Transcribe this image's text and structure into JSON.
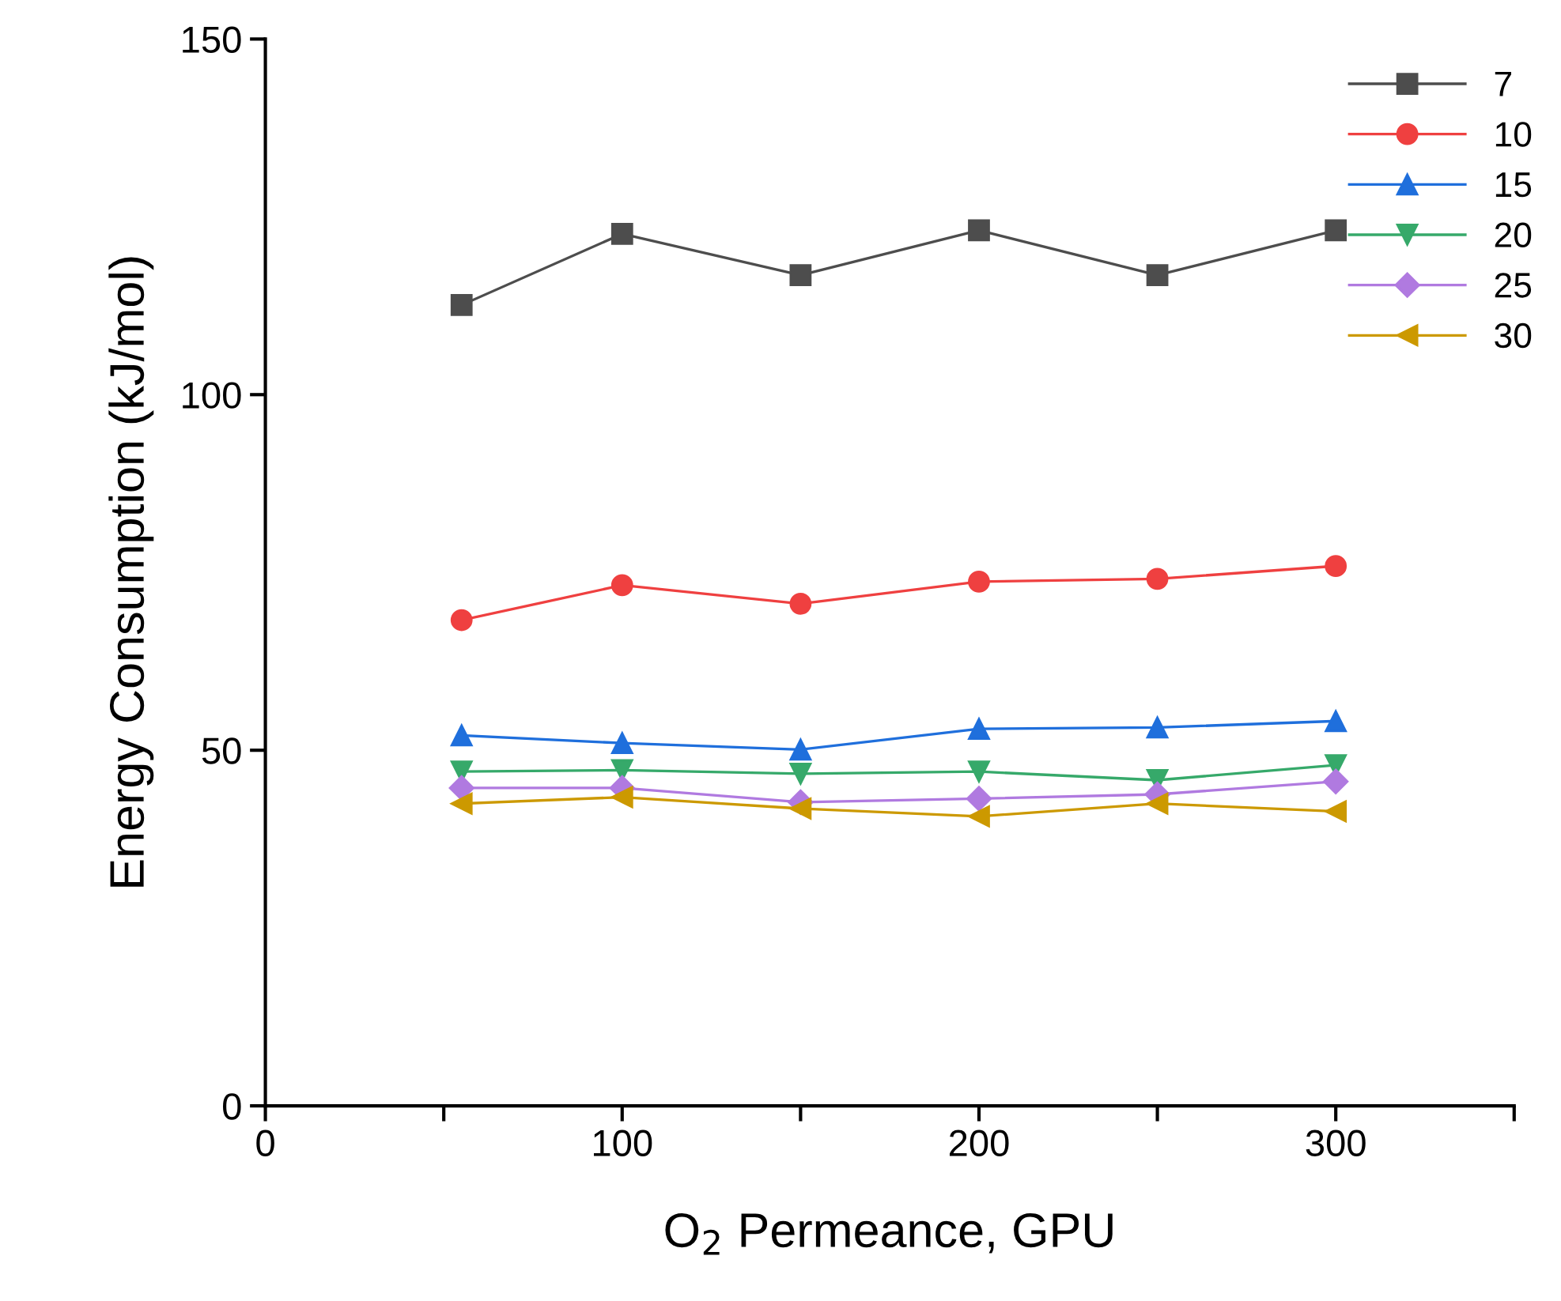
{
  "chart_data": {
    "type": "line",
    "xlabel": "O$_{2}$ Permeance, GPU",
    "ylabel": "Energy Consumption (kJ/mol)",
    "x": [
      55,
      100,
      150,
      200,
      250,
      300
    ],
    "series": [
      {
        "name": "7",
        "color": "#4d4d4d",
        "marker": "square",
        "values": [
          112.6,
          122.6,
          116.8,
          123.1,
          116.8,
          123.1
        ]
      },
      {
        "name": "10",
        "color": "#ef4040",
        "marker": "circle",
        "values": [
          68.3,
          73.2,
          70.6,
          73.7,
          74.1,
          75.9
        ]
      },
      {
        "name": "15",
        "color": "#1f6fdc",
        "marker": "triangle",
        "values": [
          52.1,
          51.0,
          50.1,
          53.0,
          53.2,
          54.1
        ]
      },
      {
        "name": "20",
        "color": "#36a96a",
        "marker": "triangle_down",
        "values": [
          47.0,
          47.2,
          46.7,
          47.0,
          45.8,
          47.9
        ]
      },
      {
        "name": "25",
        "color": "#b07ae0",
        "marker": "diamond",
        "values": [
          44.7,
          44.7,
          42.7,
          43.2,
          43.8,
          45.6
        ]
      },
      {
        "name": "30",
        "color": "#cc9900",
        "marker": "triangle_left",
        "values": [
          42.5,
          43.4,
          41.8,
          40.7,
          42.5,
          41.4
        ]
      }
    ],
    "xlim": [
      0,
      350
    ],
    "xticks": [
      0,
      {
        "value": 50,
        "label": null
      },
      100,
      {
        "value": 150,
        "label": null
      },
      200,
      {
        "value": 250,
        "label": null
      },
      300,
      {
        "value": 350,
        "label": null
      }
    ],
    "ylim": [
      0,
      150
    ],
    "yticks": [
      0,
      50,
      100,
      150
    ],
    "grid": false,
    "legend": "top right",
    "line_style": "solid"
  }
}
